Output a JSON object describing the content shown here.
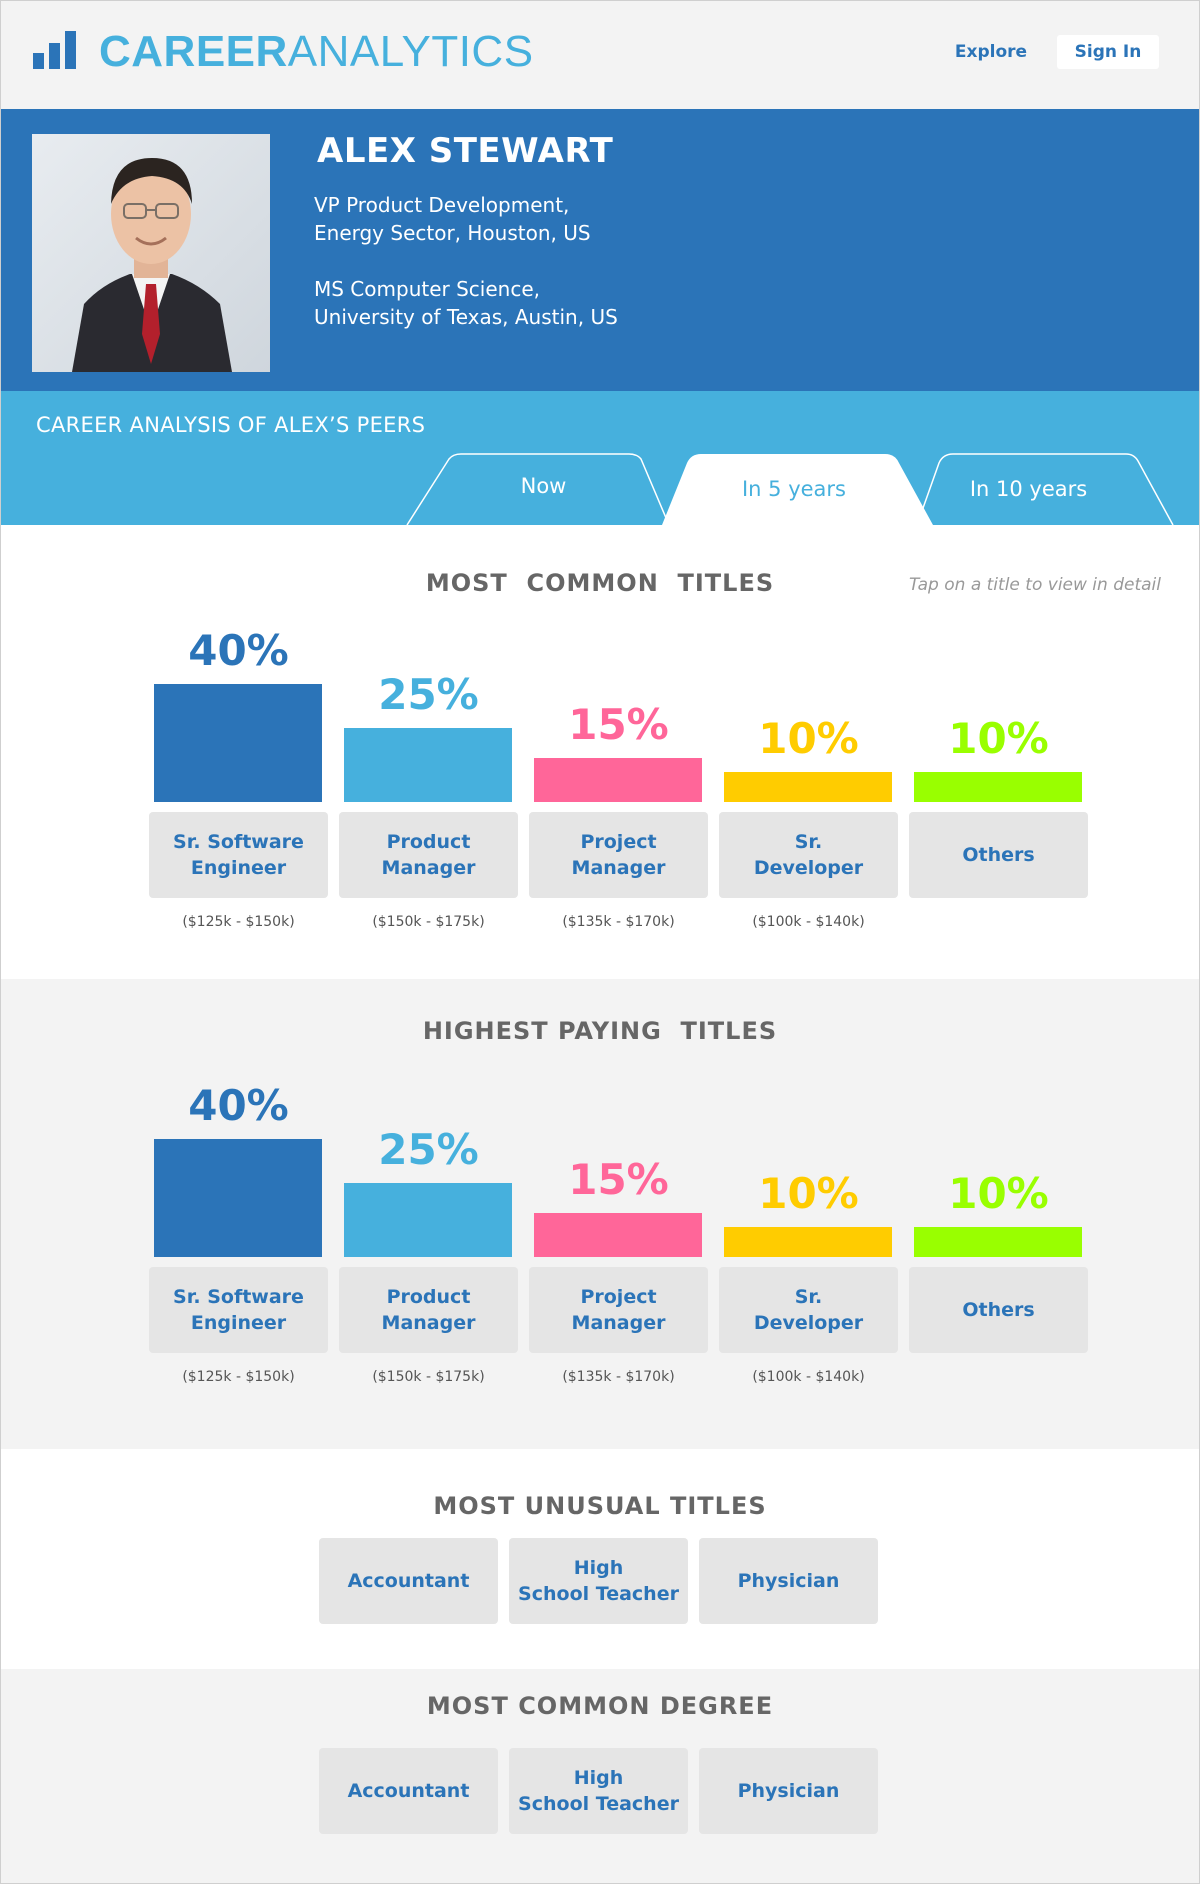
{
  "brand": {
    "part1": "CAREER",
    "part2": "ANALYTICS",
    "icon": "bar-chart-icon"
  },
  "nav": {
    "explore": "Explore",
    "signin": "Sign In"
  },
  "profile": {
    "name": "ALEX STEWART",
    "role_line1": "VP Product Development,",
    "role_line2": "Energy Sector, Houston, US",
    "edu_line1": "MS Computer Science,",
    "edu_line2": "University of Texas, Austin, US"
  },
  "peers": {
    "title": "CAREER ANALYSIS OF ALEX’S PEERS",
    "tabs": [
      {
        "label": "Now",
        "active": false
      },
      {
        "label": "In 5 years",
        "active": true
      },
      {
        "label": "In 10 years",
        "active": false
      }
    ]
  },
  "colors": {
    "dark_blue": "#2b74b8",
    "light_blue": "#46b0dd",
    "pink": "#ff6699",
    "yellow": "#ffcc00",
    "green": "#99ff00"
  },
  "common_titles": {
    "heading": "MOST  COMMON  TITLES",
    "hint": "Tap on a title to view in detail",
    "items": [
      {
        "pct": "40%",
        "value": 40,
        "label": "Sr. Software\nEngineer",
        "salary": "($125k - $150k)",
        "color": "#2b74b8"
      },
      {
        "pct": "25%",
        "value": 25,
        "label": "Product\nManager",
        "salary": "($150k - $175k)",
        "color": "#46b0dd"
      },
      {
        "pct": "15%",
        "value": 15,
        "label": "Project\nManager",
        "salary": "($135k - $170k)",
        "color": "#ff6699"
      },
      {
        "pct": "10%",
        "value": 10,
        "label": "Sr.\nDeveloper",
        "salary": "($100k - $140k)",
        "color": "#ffcc00"
      },
      {
        "pct": "10%",
        "value": 10,
        "label": "Others",
        "salary": "",
        "color": "#99ff00"
      }
    ]
  },
  "paying_titles": {
    "heading": "HIGHEST PAYING  TITLES",
    "items": [
      {
        "pct": "40%",
        "value": 40,
        "label": "Sr. Software\nEngineer",
        "salary": "($125k - $150k)",
        "color": "#2b74b8"
      },
      {
        "pct": "25%",
        "value": 25,
        "label": "Product\nManager",
        "salary": "($150k - $175k)",
        "color": "#46b0dd"
      },
      {
        "pct": "15%",
        "value": 15,
        "label": "Project\nManager",
        "salary": "($135k - $170k)",
        "color": "#ff6699"
      },
      {
        "pct": "10%",
        "value": 10,
        "label": "Sr.\nDeveloper",
        "salary": "($100k - $140k)",
        "color": "#ffcc00"
      },
      {
        "pct": "10%",
        "value": 10,
        "label": "Others",
        "salary": "",
        "color": "#99ff00"
      }
    ]
  },
  "unusual_titles": {
    "heading": "MOST UNUSUAL TITLES",
    "items": [
      "Accountant",
      "High\nSchool Teacher",
      "Physician"
    ]
  },
  "common_degree": {
    "heading": "MOST COMMON DEGREE",
    "items": [
      "Accountant",
      "High\nSchool Teacher",
      "Physician"
    ]
  }
}
